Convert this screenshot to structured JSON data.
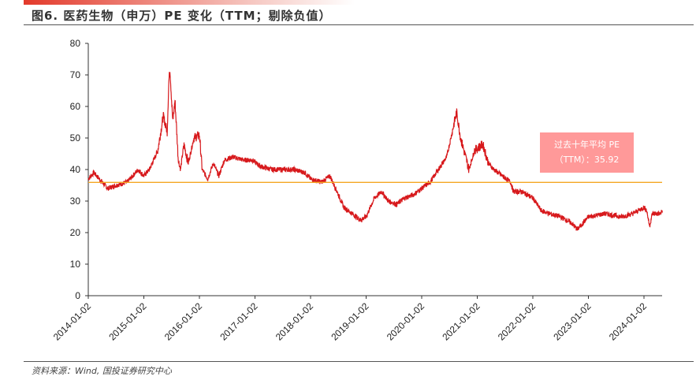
{
  "header": {
    "title": "图6. 医药生物（申万）PE 变化（TTM；剔除负值）"
  },
  "footer": {
    "source": "资料来源：Wind, 国投证券研究中心"
  },
  "chart_data": {
    "type": "line",
    "title": "医药生物（申万）PE 变化（TTM；剔除负值）",
    "xlabel": "",
    "ylabel": "",
    "ylim": [
      0,
      80
    ],
    "yticks": [
      "0",
      "10",
      "20",
      "30",
      "40",
      "50",
      "60",
      "70",
      "80"
    ],
    "xticks": [
      "2014-01-02",
      "2015-01-02",
      "2016-01-02",
      "2017-01-02",
      "2018-01-02",
      "2019-01-02",
      "2020-01-02",
      "2021-01-02",
      "2022-01-02",
      "2023-01-02",
      "2024-01-02"
    ],
    "xlim_years": [
      2014.0,
      2024.33
    ],
    "series": [
      {
        "name": "PE(TTM)",
        "color": "#d7191c",
        "x": [
          2014.0,
          2014.1,
          2014.2,
          2014.35,
          2014.5,
          2014.7,
          2014.9,
          2015.0,
          2015.1,
          2015.25,
          2015.35,
          2015.42,
          2015.45,
          2015.47,
          2015.52,
          2015.56,
          2015.62,
          2015.66,
          2015.72,
          2015.8,
          2015.9,
          2016.0,
          2016.05,
          2016.15,
          2016.25,
          2016.35,
          2016.45,
          2016.6,
          2016.8,
          2016.95,
          2017.1,
          2017.3,
          2017.5,
          2017.7,
          2017.9,
          2018.0,
          2018.2,
          2018.35,
          2018.45,
          2018.6,
          2018.75,
          2018.9,
          2019.0,
          2019.15,
          2019.28,
          2019.4,
          2019.55,
          2019.7,
          2019.85,
          2020.0,
          2020.15,
          2020.3,
          2020.45,
          2020.55,
          2020.6,
          2020.63,
          2020.7,
          2020.85,
          2020.95,
          2021.1,
          2021.2,
          2021.3,
          2021.45,
          2021.6,
          2021.65,
          2021.8,
          2022.0,
          2022.15,
          2022.3,
          2022.5,
          2022.7,
          2022.8,
          2023.0,
          2023.3,
          2023.6,
          2023.8,
          2024.0,
          2024.05,
          2024.1,
          2024.15,
          2024.3,
          2024.33
        ],
        "values": [
          37,
          39,
          37,
          34,
          35,
          36,
          40,
          38,
          40,
          46,
          57,
          52,
          68,
          72,
          55,
          62,
          43,
          40,
          48,
          42,
          50,
          51,
          40,
          37,
          42,
          38,
          43,
          44,
          43,
          43,
          41,
          40,
          40,
          40,
          39,
          37,
          36,
          38,
          34,
          28,
          26,
          24,
          25,
          31,
          33,
          30,
          29,
          31,
          32,
          34,
          36,
          40,
          44,
          52,
          56,
          58,
          50,
          40,
          46,
          48,
          42,
          40,
          38,
          36,
          33,
          33,
          31,
          27,
          26,
          25,
          23,
          21,
          25,
          26,
          25,
          26,
          28,
          27,
          22,
          26,
          26,
          27
        ]
      },
      {
        "name": "过去十年平均PE",
        "color": "#f5a623",
        "value": 35.92
      }
    ],
    "annotation": {
      "line1": "过去十年平均 PE",
      "line2": "（TTM）：35.92"
    }
  }
}
